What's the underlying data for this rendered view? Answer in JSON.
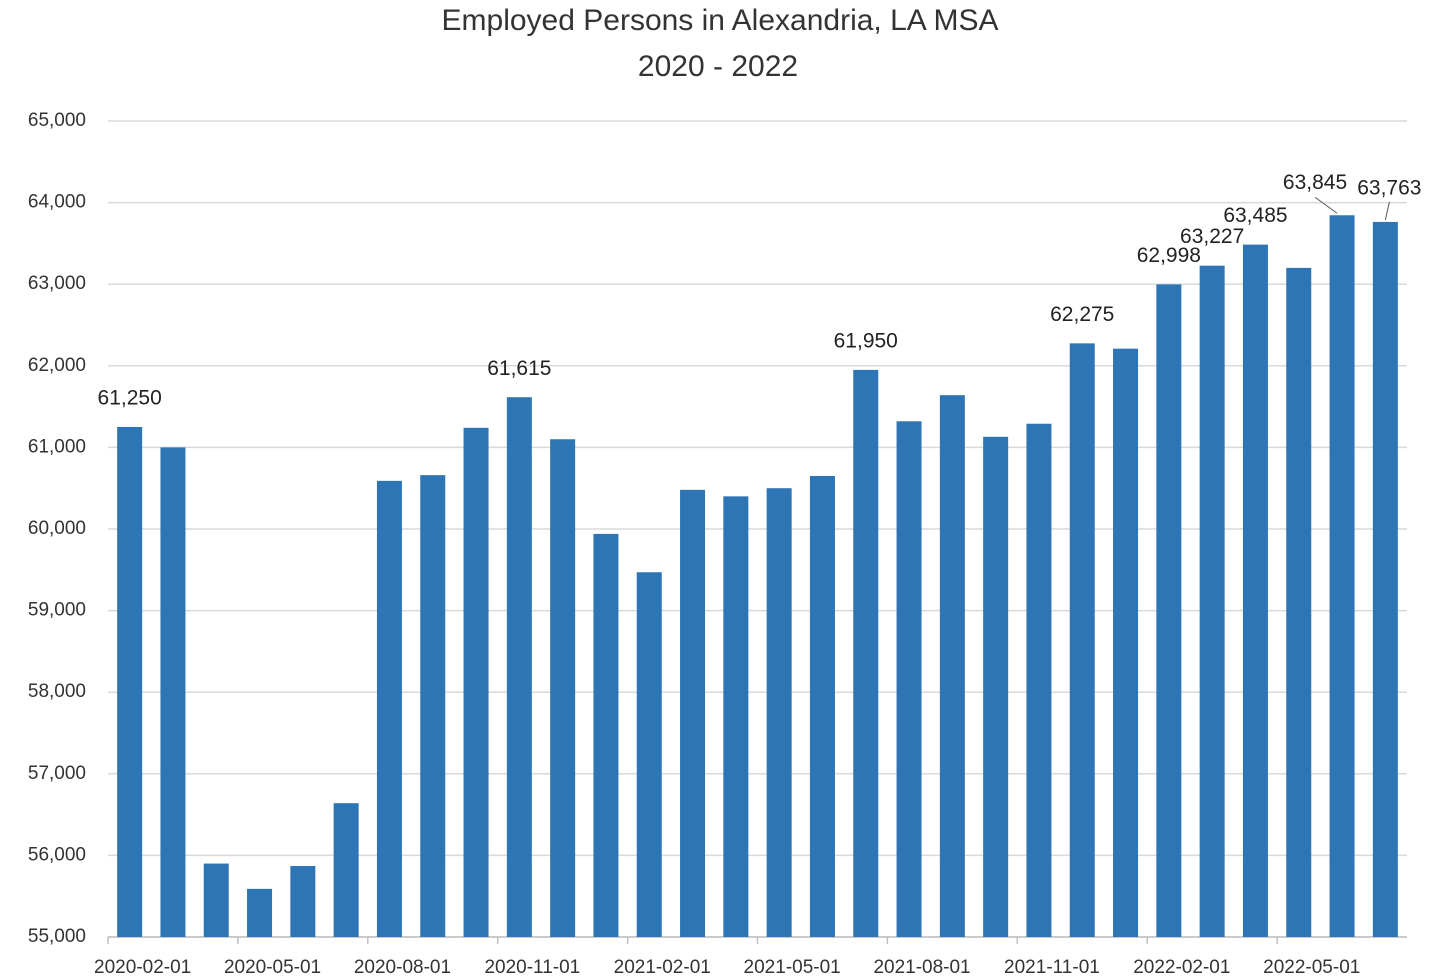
{
  "chart_data": {
    "type": "bar",
    "title": "Employed Persons in Alexandria, LA MSA",
    "subtitle": "2020 - 2022",
    "categories": [
      "2020-02-01",
      null,
      null,
      "2020-05-01",
      null,
      null,
      "2020-08-01",
      null,
      null,
      "2020-11-01",
      null,
      null,
      "2021-02-01",
      null,
      null,
      "2021-05-01",
      null,
      null,
      "2021-08-01",
      null,
      null,
      "2021-11-01",
      null,
      null,
      "2022-02-01",
      null,
      null,
      "2022-05-01",
      null,
      null
    ],
    "values": [
      61250,
      61000,
      55900,
      55590,
      55870,
      56640,
      60590,
      60660,
      61240,
      61615,
      61100,
      59940,
      59470,
      60480,
      60400,
      60500,
      60650,
      61950,
      61320,
      61640,
      61130,
      61290,
      62275,
      62210,
      62998,
      63227,
      63485,
      63200,
      63845,
      63763
    ],
    "value_labels": [
      "61,250",
      null,
      null,
      null,
      null,
      null,
      null,
      null,
      null,
      "61,615",
      null,
      null,
      null,
      null,
      null,
      null,
      null,
      "61,950",
      null,
      null,
      null,
      null,
      "62,275",
      null,
      "62,998",
      "63,227",
      "63,485",
      null,
      "63,845",
      "63,763"
    ],
    "color": "#2e75b6",
    "ylim": [
      55000,
      65000
    ],
    "yticks": [
      {
        "value": 55000,
        "label": "55,000"
      },
      {
        "value": 56000,
        "label": "56,000"
      },
      {
        "value": 57000,
        "label": "57,000"
      },
      {
        "value": 58000,
        "label": "58,000"
      },
      {
        "value": 59000,
        "label": "59,000"
      },
      {
        "value": 60000,
        "label": "60,000"
      },
      {
        "value": 61000,
        "label": "61,000"
      },
      {
        "value": 62000,
        "label": "62,000"
      },
      {
        "value": 63000,
        "label": "63,000"
      },
      {
        "value": 64000,
        "label": "64,000"
      },
      {
        "value": 65000,
        "label": "65,000"
      }
    ],
    "grid": true
  }
}
